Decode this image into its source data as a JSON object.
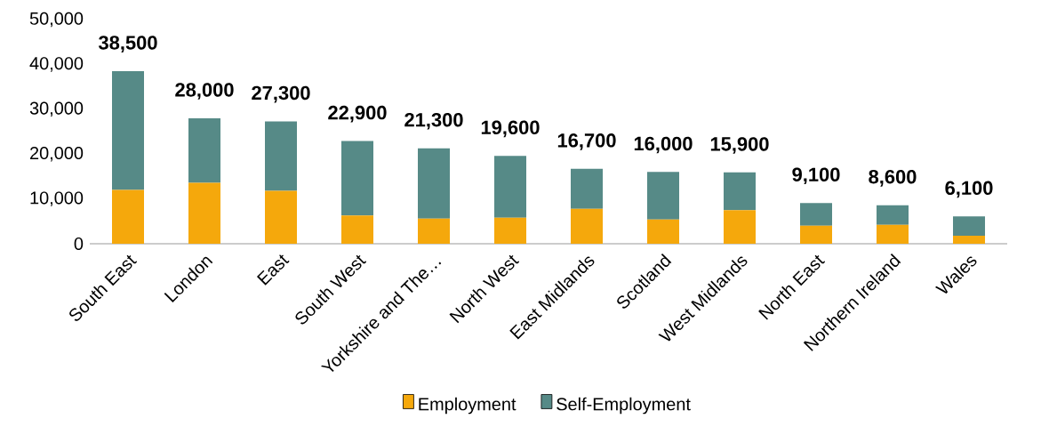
{
  "chart_data": {
    "type": "bar",
    "stacked": true,
    "legend": "bottom",
    "categories": [
      "South East",
      "London",
      "East",
      "South West",
      "Yorkshire and The…",
      "North West",
      "East Midlands",
      "Scotland",
      "West Midlands",
      "North East",
      "Northern Ireland",
      "Wales"
    ],
    "series": [
      {
        "name": "Employment",
        "color": "#f5a80c",
        "values": [
          12000,
          13600,
          11800,
          6300,
          5600,
          5800,
          7800,
          5400,
          7500,
          4000,
          4200,
          1800
        ]
      },
      {
        "name": "Self-Employment",
        "color": "#568a87",
        "values": [
          26500,
          14400,
          15500,
          16600,
          15700,
          13800,
          8900,
          10600,
          8400,
          5100,
          4400,
          4300
        ]
      }
    ],
    "totals": [
      "38,500",
      "28,000",
      "27,300",
      "22,900",
      "21,300",
      "19,600",
      "16,700",
      "16,000",
      "15,900",
      "9,100",
      "8,600",
      "6,100"
    ],
    "ylim": [
      0,
      50000
    ],
    "yticks": [
      {
        "value": 0,
        "label": "0"
      },
      {
        "value": 10000,
        "label": "10,000"
      },
      {
        "value": 20000,
        "label": "20,000"
      },
      {
        "value": 30000,
        "label": "30,000"
      },
      {
        "value": 40000,
        "label": "40,000"
      },
      {
        "value": 50000,
        "label": "50,000"
      }
    ]
  }
}
